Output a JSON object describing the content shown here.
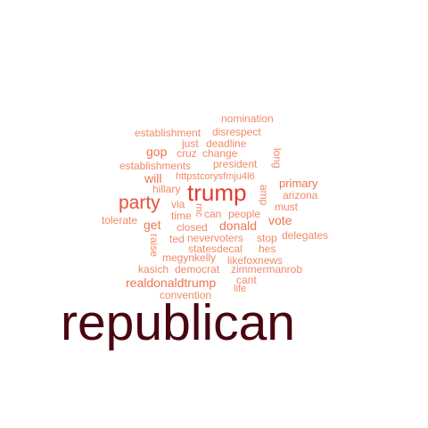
{
  "colors": {
    "background": "#ffffff",
    "large": "#4a0510",
    "medium": "#e23b2e",
    "small": "#f08a6a"
  },
  "words": [
    {
      "text": "republican",
      "color": "#4a0510"
    },
    {
      "text": "trump",
      "color": "#e23b2e"
    },
    {
      "text": "party",
      "color": "#e8503e"
    },
    {
      "text": "nomination",
      "color": "#f08a6a"
    },
    {
      "text": "establishment",
      "color": "#f08a6a"
    },
    {
      "text": "disrespect",
      "color": "#f08a6a"
    },
    {
      "text": "just",
      "color": "#f08a6a"
    },
    {
      "text": "deadline",
      "color": "#f08a6a"
    },
    {
      "text": "gop",
      "color": "#ee7452"
    },
    {
      "text": "cruz",
      "color": "#f08a6a"
    },
    {
      "text": "change",
      "color": "#f08a6a"
    },
    {
      "text": "long",
      "color": "#f08a6a"
    },
    {
      "text": "establishments",
      "color": "#f08a6a"
    },
    {
      "text": "president",
      "color": "#f08a6a"
    },
    {
      "text": "will",
      "color": "#ee7452"
    },
    {
      "text": "httpstcorysfmju4l6",
      "color": "#f08a6a"
    },
    {
      "text": "primary",
      "color": "#ee7452"
    },
    {
      "text": "hillary",
      "color": "#f08a6a"
    },
    {
      "text": "amp",
      "color": "#f08a6a"
    },
    {
      "text": "arizona",
      "color": "#f08a6a"
    },
    {
      "text": "via",
      "color": "#f08a6a"
    },
    {
      "text": "rnc",
      "color": "#f08a6a"
    },
    {
      "text": "must",
      "color": "#f08a6a"
    },
    {
      "text": "time",
      "color": "#f08a6a"
    },
    {
      "text": "can",
      "color": "#f08a6a"
    },
    {
      "text": "people",
      "color": "#f08a6a"
    },
    {
      "text": "tolerate",
      "color": "#f08a6a"
    },
    {
      "text": "vote",
      "color": "#ee7452"
    },
    {
      "text": "get",
      "color": "#ee7452"
    },
    {
      "text": "closed",
      "color": "#f08a6a"
    },
    {
      "text": "donald",
      "color": "#ee7452"
    },
    {
      "text": "raise",
      "color": "#f08a6a"
    },
    {
      "text": "ted",
      "color": "#f08a6a"
    },
    {
      "text": "nevervoters",
      "color": "#f08a6a"
    },
    {
      "text": "stop",
      "color": "#f08a6a"
    },
    {
      "text": "delegates",
      "color": "#f08a6a"
    },
    {
      "text": "statesdecal",
      "color": "#f08a6a"
    },
    {
      "text": "hes",
      "color": "#f08a6a"
    },
    {
      "text": "megynkelly",
      "color": "#f08a6a"
    },
    {
      "text": "likefoxnews",
      "color": "#f08a6a"
    },
    {
      "text": "kasich",
      "color": "#f08a6a"
    },
    {
      "text": "democrat",
      "color": "#f08a6a"
    },
    {
      "text": "zimmermanrob",
      "color": "#f08a6a"
    },
    {
      "text": "cant",
      "color": "#f08a6a"
    },
    {
      "text": "realdonaldtrump",
      "color": "#ee7452"
    },
    {
      "text": "life",
      "color": "#f08a6a"
    },
    {
      "text": "convention",
      "color": "#f08a6a"
    }
  ]
}
